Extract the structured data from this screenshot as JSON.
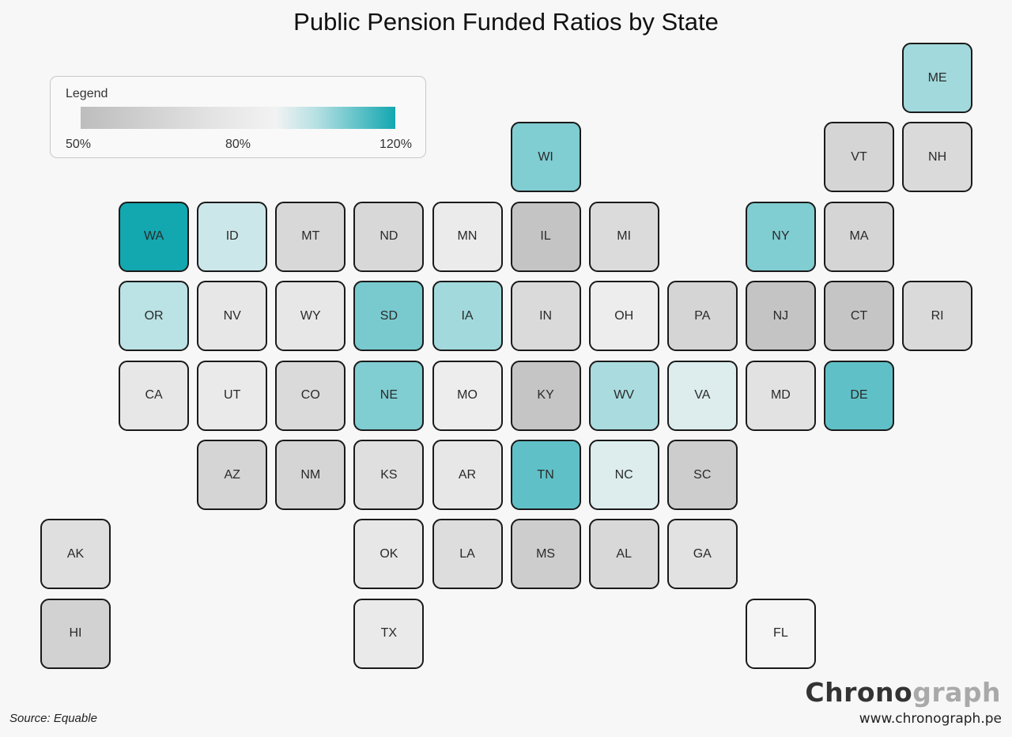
{
  "title": "Public Pension Funded Ratios by State",
  "legend": {
    "title": "Legend",
    "min_label": "50%",
    "mid_label": "80%",
    "max_label": "120%",
    "range": [
      50,
      120
    ],
    "colors": {
      "low": "#bdbdbd",
      "neutral": "#f6f6f6",
      "high": "#13a7b0"
    }
  },
  "source": "Source: Equable",
  "brand": {
    "part1": "Chrono",
    "part2": "graph",
    "url": "www.chronograph.pe"
  },
  "chart_data": {
    "type": "tile-map",
    "title": "Public Pension Funded Ratios by State",
    "value_unit": "% funded (estimated from fill color)",
    "states": [
      {
        "state": "ME",
        "value": 103
      },
      {
        "state": "WI",
        "value": 107
      },
      {
        "state": "VT",
        "value": 68
      },
      {
        "state": "NH",
        "value": 72
      },
      {
        "state": "WA",
        "value": 120
      },
      {
        "state": "ID",
        "value": 98
      },
      {
        "state": "MT",
        "value": 70
      },
      {
        "state": "ND",
        "value": 70
      },
      {
        "state": "MN",
        "value": 85
      },
      {
        "state": "IL",
        "value": 55
      },
      {
        "state": "MI",
        "value": 73
      },
      {
        "state": "NY",
        "value": 107
      },
      {
        "state": "MA",
        "value": 68
      },
      {
        "state": "OR",
        "value": 100
      },
      {
        "state": "NV",
        "value": 82
      },
      {
        "state": "WY",
        "value": 82
      },
      {
        "state": "SD",
        "value": 108
      },
      {
        "state": "IA",
        "value": 103
      },
      {
        "state": "IN",
        "value": 72
      },
      {
        "state": "OH",
        "value": 86
      },
      {
        "state": "PA",
        "value": 68
      },
      {
        "state": "NJ",
        "value": 55
      },
      {
        "state": "CT",
        "value": 56
      },
      {
        "state": "RI",
        "value": 72
      },
      {
        "state": "CA",
        "value": 82
      },
      {
        "state": "UT",
        "value": 84
      },
      {
        "state": "CO",
        "value": 72
      },
      {
        "state": "NE",
        "value": 107
      },
      {
        "state": "MO",
        "value": 86
      },
      {
        "state": "KY",
        "value": 56
      },
      {
        "state": "WV",
        "value": 102
      },
      {
        "state": "VA",
        "value": 96
      },
      {
        "state": "MD",
        "value": 78
      },
      {
        "state": "DE",
        "value": 111
      },
      {
        "state": "AZ",
        "value": 68
      },
      {
        "state": "NM",
        "value": 68
      },
      {
        "state": "KS",
        "value": 76
      },
      {
        "state": "AR",
        "value": 82
      },
      {
        "state": "TN",
        "value": 111
      },
      {
        "state": "NC",
        "value": 96
      },
      {
        "state": "SC",
        "value": 62
      },
      {
        "state": "AK",
        "value": 76
      },
      {
        "state": "OK",
        "value": 82
      },
      {
        "state": "LA",
        "value": 74
      },
      {
        "state": "MS",
        "value": 62
      },
      {
        "state": "AL",
        "value": 70
      },
      {
        "state": "GA",
        "value": 78
      },
      {
        "state": "HI",
        "value": 66
      },
      {
        "state": "TX",
        "value": 84
      },
      {
        "state": "FL",
        "value": 92
      }
    ]
  }
}
